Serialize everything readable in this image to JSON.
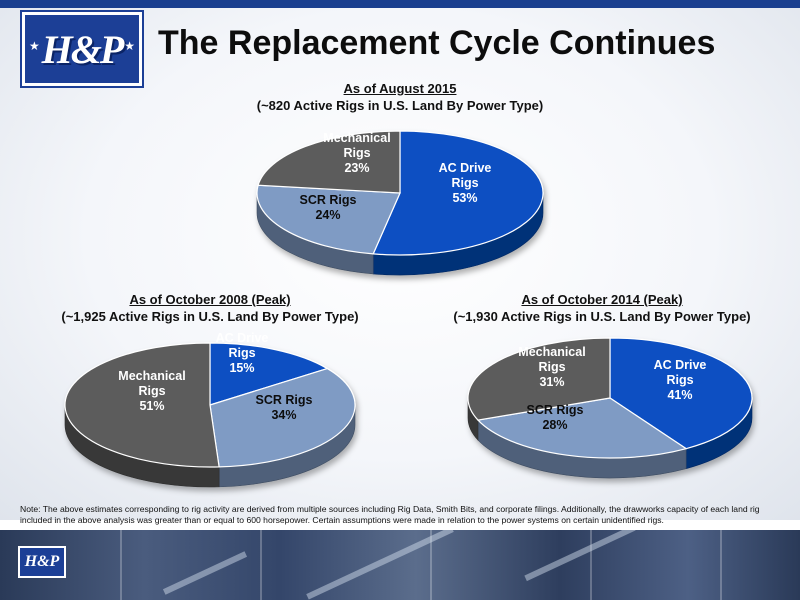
{
  "slide": {
    "title": "The Replacement Cycle Continues",
    "logo_text": "H&P",
    "note": "Note:   The above estimates corresponding to rig activity are derived from multiple sources including Rig Data, Smith Bits, and corporate filings.  Additionally, the drawworks capacity of each land rig included in the above analysis was greater than or equal to 600 horsepower.  Certain assumptions were made in relation to the power systems on certain unidentified rigs."
  },
  "colors": {
    "ac": "#0a4fc2",
    "scr": "#7f9bc4",
    "mech": "#5c5c5c"
  },
  "chart_data": [
    {
      "type": "pie",
      "title": "As of August 2015",
      "subtitle": "(~820 Active Rigs in U.S. Land By Power Type)",
      "slices": [
        {
          "name": "AC Drive Rigs",
          "label_lines": [
            "AC Drive",
            "Rigs"
          ],
          "value": 53,
          "value_label": "53%",
          "color": "#0a4fc2"
        },
        {
          "name": "SCR Rigs",
          "label_lines": [
            "SCR Rigs"
          ],
          "value": 24,
          "value_label": "24%",
          "color": "#7f9bc4"
        },
        {
          "name": "Mechanical Rigs",
          "label_lines": [
            "Mechanical",
            "Rigs"
          ],
          "value": 23,
          "value_label": "23%",
          "color": "#5c5c5c"
        }
      ]
    },
    {
      "type": "pie",
      "title": "As of October 2008 (Peak)",
      "subtitle": "(~1,925 Active Rigs in U.S. Land By Power Type)",
      "slices": [
        {
          "name": "AC Drive Rigs",
          "label_lines": [
            "AC Drive",
            "Rigs"
          ],
          "value": 15,
          "value_label": "15%",
          "color": "#0a4fc2"
        },
        {
          "name": "SCR Rigs",
          "label_lines": [
            "SCR Rigs"
          ],
          "value": 34,
          "value_label": "34%",
          "color": "#7f9bc4"
        },
        {
          "name": "Mechanical Rigs",
          "label_lines": [
            "Mechanical",
            "Rigs"
          ],
          "value": 51,
          "value_label": "51%",
          "color": "#5c5c5c"
        }
      ]
    },
    {
      "type": "pie",
      "title": "As of October 2014 (Peak)",
      "subtitle": "(~1,930 Active Rigs in U.S. Land By Power Type)",
      "slices": [
        {
          "name": "AC Drive Rigs",
          "label_lines": [
            "AC Drive",
            "Rigs"
          ],
          "value": 41,
          "value_label": "41%",
          "color": "#0a4fc2"
        },
        {
          "name": "SCR Rigs",
          "label_lines": [
            "SCR Rigs"
          ],
          "value": 28,
          "value_label": "28%",
          "color": "#7f9bc4"
        },
        {
          "name": "Mechanical Rigs",
          "label_lines": [
            "Mechanical",
            "Rigs"
          ],
          "value": 31,
          "value_label": "31%",
          "color": "#5c5c5c"
        }
      ]
    }
  ]
}
